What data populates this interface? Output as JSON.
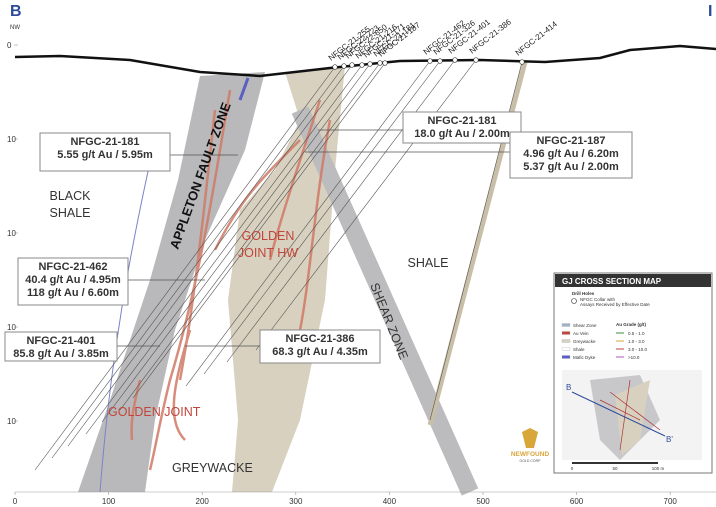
{
  "header": {
    "section_start": "B",
    "direction": "NW",
    "section_end": "I"
  },
  "depth_labels": [
    "0",
    "10",
    "10",
    "10",
    "10"
  ],
  "distance_labels": [
    "0",
    "100",
    "200",
    "300",
    "400",
    "500",
    "600",
    "700"
  ],
  "drill_holes": [
    "NFGC-21-255",
    "NFGC-22-723",
    "NFGC-22-650",
    "NFGC-21-216",
    "NFGC-21-171",
    "NFGC-21-181",
    "NFGC-21-187",
    "NFGC-21-462",
    "NFGC-21-326",
    "NFGC-21-401",
    "NFGC-21-386",
    "NFGC-21-414"
  ],
  "intercepts": [
    {
      "hole": "NFGC-21-181",
      "lines": [
        "5.55 g/t Au / 5.95m"
      ]
    },
    {
      "hole": "NFGC-21-181",
      "lines": [
        "18.0 g/t Au / 2.00m"
      ]
    },
    {
      "hole": "NFGC-21-187",
      "lines": [
        "4.96 g/t Au / 6.20m",
        "5.37 g/t Au / 2.00m"
      ]
    },
    {
      "hole": "NFGC-21-462",
      "lines": [
        "40.4 g/t Au / 4.95m",
        "118 g/t Au / 6.60m"
      ]
    },
    {
      "hole": "NFGC-21-401",
      "lines": [
        "85.8 g/t Au / 3.85m"
      ]
    },
    {
      "hole": "NFGC-21-386",
      "lines": [
        "68.3 g/t Au / 4.35m"
      ]
    }
  ],
  "units": {
    "black_shale": [
      "BLACK",
      "SHALE"
    ],
    "fault": "APPLETON FAULT ZONE",
    "gj_hw": [
      "GOLDEN",
      "JOINT HW"
    ],
    "shale": "SHALE",
    "shear": "SHEAR ZONE",
    "gj": "GOLDEN JOINT",
    "greywacke": "GREYWACKE"
  },
  "inset": {
    "title": "GJ CROSS SECTION MAP",
    "drill_title": "Drill Holes",
    "collar": [
      "NFGC Collar with",
      "Assays Received by Effective Date"
    ],
    "legend": [
      "Shear Zone",
      "Au Vein",
      "Greywacke",
      "Shale",
      "Mafic Dyke"
    ],
    "grade_title": "Au Grade (g/t)",
    "grades": [
      "0.5 - 1.0",
      "1.0 - 3.0",
      "3.0 - 10.0",
      ">10.0"
    ],
    "b": "B",
    "b_prime": "B'",
    "scale": [
      "0",
      "50",
      "100 m"
    ]
  },
  "logo": {
    "name": "NEWFOUND",
    "sub": "GOLD CORP"
  }
}
